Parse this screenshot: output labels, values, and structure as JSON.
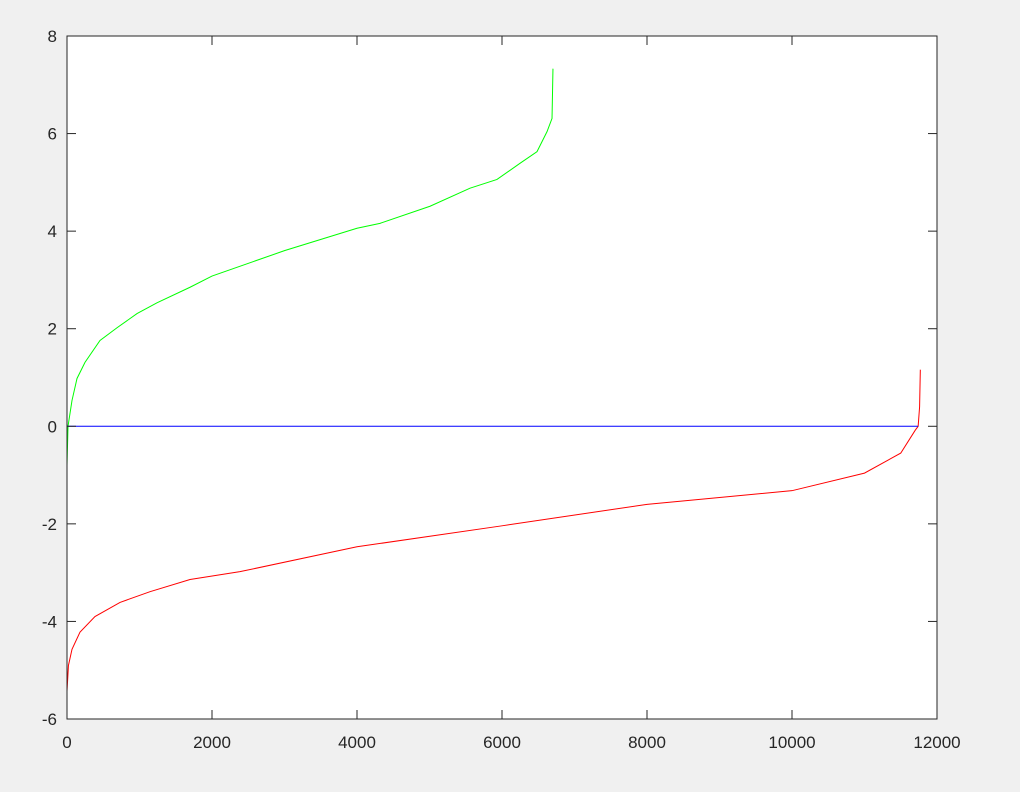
{
  "chart_data": {
    "type": "line",
    "title": "",
    "xlabel": "",
    "ylabel": "",
    "xlim": [
      0,
      12000
    ],
    "ylim": [
      -6,
      8
    ],
    "xticks": [
      "0",
      "2000",
      "4000",
      "6000",
      "8000",
      "10000",
      "12000"
    ],
    "yticks": [
      "-6",
      "-4",
      "-2",
      "0",
      "2",
      "4",
      "6",
      "8"
    ],
    "grid": false,
    "series": [
      {
        "color": "#00ff00",
        "x": [
          0,
          14,
          69,
          138,
          248,
          455,
          690,
          966,
          1241,
          1697,
          2000,
          3000,
          4000,
          4317,
          5007,
          5559,
          5931,
          6248,
          6483,
          6621,
          6690,
          6703
        ],
        "y": [
          -0.8,
          0,
          0.53,
          0.98,
          1.31,
          1.76,
          2.02,
          2.31,
          2.53,
          2.85,
          3.08,
          3.6,
          4.06,
          4.16,
          4.51,
          4.88,
          5.06,
          5.39,
          5.63,
          6.04,
          6.31,
          7.33
        ]
      },
      {
        "color": "#ff0000",
        "x": [
          0,
          20,
          69,
          179,
          386,
          731,
          1145,
          1697,
          2386,
          4000,
          6000,
          8000,
          10000,
          11000,
          11500,
          11700,
          11740,
          11760,
          11770
        ],
        "y": [
          -5.43,
          -4.9,
          -4.57,
          -4.22,
          -3.9,
          -3.61,
          -3.39,
          -3.14,
          -2.98,
          -2.47,
          -2.04,
          -1.6,
          -1.32,
          -0.96,
          -0.55,
          -0.08,
          0,
          0.4,
          1.16
        ]
      },
      {
        "color": "#0000ff",
        "x": [
          0,
          11740
        ],
        "y": [
          0,
          0
        ]
      }
    ]
  }
}
